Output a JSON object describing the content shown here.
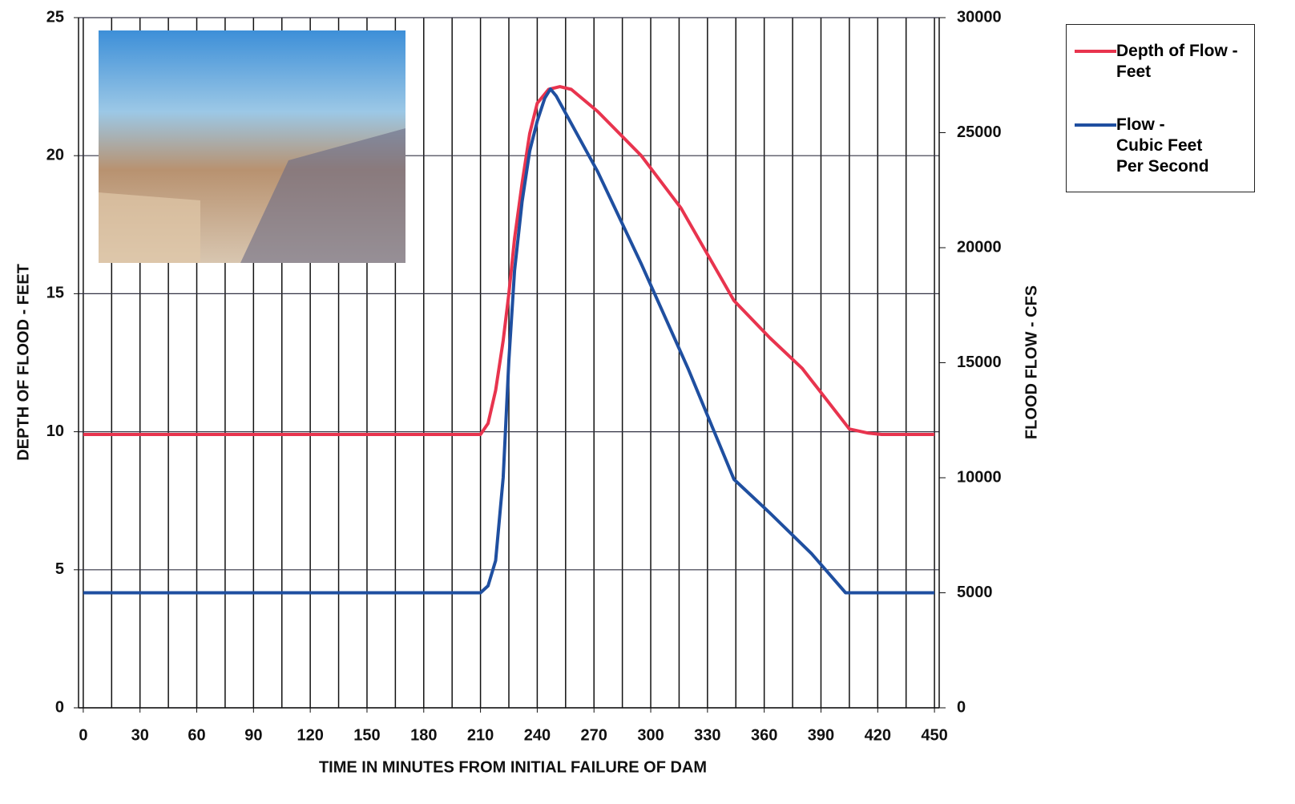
{
  "chart_data": {
    "type": "line",
    "xlabel": "TIME IN MINUTES FROM INITIAL FAILURE OF DAM",
    "ylabel": "DEPTH OF FLOOD - FEET",
    "y2label": "FLOOD FLOW - CFS",
    "xlim": [
      -2.5,
      452.5
    ],
    "xticks": [
      0,
      30,
      60,
      90,
      120,
      150,
      180,
      210,
      240,
      270,
      300,
      330,
      360,
      390,
      420,
      450
    ],
    "xgrid": [
      0,
      15,
      30,
      45,
      60,
      75,
      90,
      105,
      120,
      135,
      150,
      165,
      180,
      195,
      210,
      225,
      240,
      255,
      270,
      285,
      300,
      315,
      330,
      345,
      360,
      375,
      390,
      405,
      420,
      435,
      450
    ],
    "ylim": [
      0,
      25
    ],
    "yticks": [
      0,
      5,
      10,
      15,
      20,
      25
    ],
    "y2lim": [
      0,
      30000
    ],
    "y2ticks": [
      0,
      5000,
      10000,
      15000,
      20000,
      25000,
      30000
    ],
    "grid": true,
    "legend": "upper right outside",
    "series": [
      {
        "name": "Depth of Flow - Feet",
        "color": "#e8344e",
        "x": [
          0,
          210,
          214,
          218,
          222,
          225,
          228,
          232,
          236,
          240,
          246,
          252,
          258,
          272,
          295,
          316,
          344,
          363,
          380,
          405,
          415,
          422,
          450
        ],
        "values": [
          9.9,
          9.9,
          10.3,
          11.5,
          13.3,
          15,
          17,
          19,
          20.8,
          21.9,
          22.4,
          22.5,
          22.4,
          21.6,
          20,
          18.1,
          14.75,
          13.4,
          12.3,
          10.1,
          9.95,
          9.9,
          9.9
        ]
      },
      {
        "name": "Flow - Cubic Feet Per Second",
        "color": "#1f4fa0",
        "axis": "y2",
        "x": [
          0,
          210,
          214,
          218,
          222,
          225,
          228,
          232,
          236,
          240,
          244,
          247,
          250,
          272,
          295,
          320,
          344,
          363,
          385,
          403,
          450
        ],
        "values": [
          5000,
          5000,
          5300,
          6400,
          10000,
          15100,
          19000,
          22000,
          24200,
          25500,
          26500,
          26900,
          26600,
          23300,
          19300,
          14700,
          9930,
          8470,
          6700,
          5000,
          5000
        ]
      }
    ]
  }
}
